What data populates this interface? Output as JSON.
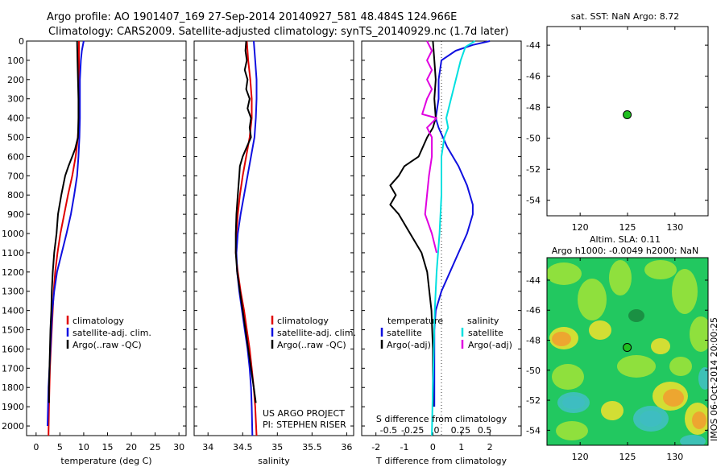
{
  "header": {
    "line1": "Argo profile: AO 1901407_169 27-Sep-2014 20140927_581 48.484S 124.966E",
    "line2": "Climatology: CARS2009. Satellite-adjusted climatology: synTS_20140929.nc (1.7d later)"
  },
  "colors": {
    "climatology": "#e00000",
    "satellite": "#1010e0",
    "argo": "#000000",
    "sal_satellite": "#00e0e0",
    "sal_argo": "#e000e0",
    "marker": "#20c020"
  },
  "credits": {
    "line1": "US ARGO PROJECT",
    "line2": "PI: STEPHEN RISER"
  },
  "chart_data": [
    {
      "id": "temperature",
      "type": "line",
      "xlabel": "temperature (deg C)",
      "xlim": [
        -2,
        31.5
      ],
      "ylim": [
        0,
        2050
      ],
      "yreversed": true,
      "xticks": [
        0,
        5,
        10,
        15,
        20,
        25,
        30
      ],
      "xticklabels": [
        "0",
        "5",
        "10",
        "15",
        "20",
        "25",
        "30"
      ],
      "yticks": [
        0,
        100,
        200,
        300,
        400,
        500,
        600,
        700,
        800,
        900,
        1000,
        1100,
        1200,
        1300,
        1400,
        1500,
        1600,
        1700,
        1800,
        1900,
        2000
      ],
      "legend": [
        "climatology",
        "satellite-adj. clim.",
        "Argo(..raw -QC)"
      ],
      "series": [
        {
          "name": "climatology",
          "color": "#e00000",
          "points": [
            [
              9.0,
              0
            ],
            [
              9.0,
              100
            ],
            [
              9.0,
              300
            ],
            [
              8.9,
              450
            ],
            [
              8.7,
              520
            ],
            [
              8.3,
              600
            ],
            [
              7.6,
              700
            ],
            [
              6.7,
              800
            ],
            [
              5.9,
              900
            ],
            [
              5.1,
              1000
            ],
            [
              4.5,
              1100
            ],
            [
              4.0,
              1200
            ],
            [
              3.7,
              1300
            ],
            [
              3.5,
              1400
            ],
            [
              3.3,
              1500
            ],
            [
              3.1,
              1600
            ],
            [
              2.9,
              1700
            ],
            [
              2.8,
              1800
            ],
            [
              2.7,
              1900
            ],
            [
              2.6,
              2050
            ]
          ]
        },
        {
          "name": "satellite-adj. clim.",
          "color": "#1010e0",
          "points": [
            [
              10.0,
              0
            ],
            [
              9.6,
              50
            ],
            [
              9.4,
              100
            ],
            [
              9.2,
              200
            ],
            [
              9.2,
              300
            ],
            [
              9.2,
              400
            ],
            [
              9.1,
              500
            ],
            [
              8.9,
              600
            ],
            [
              8.6,
              700
            ],
            [
              8.0,
              800
            ],
            [
              7.3,
              900
            ],
            [
              6.4,
              1000
            ],
            [
              5.4,
              1100
            ],
            [
              4.4,
              1200
            ],
            [
              3.8,
              1300
            ],
            [
              3.4,
              1400
            ],
            [
              3.2,
              1500
            ],
            [
              3.0,
              1600
            ],
            [
              2.8,
              1700
            ],
            [
              2.6,
              1800
            ],
            [
              2.5,
              1900
            ],
            [
              2.4,
              2000
            ]
          ]
        },
        {
          "name": "Argo(..raw -QC)",
          "color": "#000000",
          "points": [
            [
              8.6,
              0
            ],
            [
              8.7,
              100
            ],
            [
              8.8,
              200
            ],
            [
              8.9,
              300
            ],
            [
              8.9,
              400
            ],
            [
              8.8,
              500
            ],
            [
              8.2,
              560
            ],
            [
              7.6,
              600
            ],
            [
              6.8,
              650
            ],
            [
              6.1,
              700
            ],
            [
              5.3,
              800
            ],
            [
              4.6,
              900
            ],
            [
              4.3,
              1000
            ],
            [
              3.8,
              1100
            ],
            [
              3.5,
              1200
            ],
            [
              3.3,
              1300
            ],
            [
              3.2,
              1400
            ],
            [
              3.0,
              1500
            ],
            [
              2.9,
              1600
            ],
            [
              2.8,
              1700
            ],
            [
              2.7,
              1800
            ],
            [
              2.7,
              1880
            ]
          ]
        }
      ]
    },
    {
      "id": "salinity",
      "type": "line",
      "xlabel": "salinity",
      "xlim": [
        33.8,
        36.1
      ],
      "ylim": [
        0,
        2050
      ],
      "yreversed": true,
      "xticks": [
        34,
        34.5,
        35,
        35.5,
        36
      ],
      "xticklabels": [
        "34",
        "34.5",
        "35",
        "35.5",
        "36"
      ],
      "legend": [
        "climatology",
        "satellite-adj. clim.",
        "Argo(..raw -QC)"
      ],
      "series": [
        {
          "name": "climatology",
          "color": "#e00000",
          "points": [
            [
              34.56,
              0
            ],
            [
              34.58,
              100
            ],
            [
              34.61,
              200
            ],
            [
              34.63,
              300
            ],
            [
              34.63,
              400
            ],
            [
              34.6,
              500
            ],
            [
              34.55,
              600
            ],
            [
              34.5,
              700
            ],
            [
              34.46,
              800
            ],
            [
              34.43,
              900
            ],
            [
              34.41,
              1000
            ],
            [
              34.4,
              1100
            ],
            [
              34.43,
              1200
            ],
            [
              34.47,
              1300
            ],
            [
              34.52,
              1400
            ],
            [
              34.56,
              1500
            ],
            [
              34.6,
              1600
            ],
            [
              34.63,
              1700
            ],
            [
              34.66,
              1800
            ],
            [
              34.68,
              1900
            ],
            [
              34.7,
              2050
            ]
          ]
        },
        {
          "name": "satellite-adj. clim.",
          "color": "#1010e0",
          "points": [
            [
              34.66,
              0
            ],
            [
              34.68,
              100
            ],
            [
              34.7,
              200
            ],
            [
              34.7,
              300
            ],
            [
              34.69,
              400
            ],
            [
              34.67,
              500
            ],
            [
              34.62,
              600
            ],
            [
              34.57,
              700
            ],
            [
              34.52,
              800
            ],
            [
              34.47,
              900
            ],
            [
              34.43,
              1000
            ],
            [
              34.41,
              1100
            ],
            [
              34.42,
              1200
            ],
            [
              34.45,
              1300
            ],
            [
              34.49,
              1400
            ],
            [
              34.53,
              1500
            ],
            [
              34.57,
              1600
            ],
            [
              34.6,
              1700
            ],
            [
              34.62,
              1800
            ],
            [
              34.63,
              1900
            ],
            [
              34.64,
              2050
            ]
          ]
        },
        {
          "name": "Argo(..raw -QC)",
          "color": "#000000",
          "points": [
            [
              34.55,
              0
            ],
            [
              34.54,
              50
            ],
            [
              34.56,
              100
            ],
            [
              34.53,
              150
            ],
            [
              34.57,
              200
            ],
            [
              34.55,
              250
            ],
            [
              34.6,
              300
            ],
            [
              34.57,
              350
            ],
            [
              34.62,
              400
            ],
            [
              34.6,
              450
            ],
            [
              34.62,
              500
            ],
            [
              34.56,
              550
            ],
            [
              34.5,
              600
            ],
            [
              34.46,
              650
            ],
            [
              34.45,
              700
            ],
            [
              34.43,
              800
            ],
            [
              34.41,
              900
            ],
            [
              34.4,
              1000
            ],
            [
              34.4,
              1100
            ],
            [
              34.42,
              1200
            ],
            [
              34.46,
              1300
            ],
            [
              34.5,
              1400
            ],
            [
              34.54,
              1500
            ],
            [
              34.58,
              1600
            ],
            [
              34.62,
              1700
            ],
            [
              34.66,
              1800
            ],
            [
              34.69,
              1880
            ]
          ]
        }
      ]
    },
    {
      "id": "difference",
      "type": "line",
      "xlabel": "T difference from climatology",
      "xlabel_top": "S difference from climatology",
      "xlim": [
        -2.5,
        3.1
      ],
      "ylim": [
        0,
        2050
      ],
      "yreversed": true,
      "xticks": [
        -2,
        -1,
        0,
        1,
        2
      ],
      "xticklabels": [
        "-2",
        "-1",
        "0",
        "1",
        "2"
      ],
      "xticks_top": [
        -0.5,
        -0.25,
        0,
        0.25,
        0.5
      ],
      "xticklabels_top": [
        "-0.5",
        "-0.25",
        "0",
        "0.25",
        "0.5"
      ],
      "legend_headers": [
        "temperature",
        "salinity"
      ],
      "legend": [
        [
          "satellite",
          "Argo(-adj)"
        ],
        [
          "satellite",
          "Argo(-adj)"
        ]
      ],
      "series": [
        {
          "name": "satellite",
          "group": "temperature",
          "color": "#1010e0",
          "points": [
            [
              2.0,
              0
            ],
            [
              1.4,
              20
            ],
            [
              0.8,
              50
            ],
            [
              0.3,
              100
            ],
            [
              0.2,
              200
            ],
            [
              0.2,
              300
            ],
            [
              0.1,
              400
            ],
            [
              0.2,
              450
            ],
            [
              0.5,
              550
            ],
            [
              0.9,
              650
            ],
            [
              1.2,
              750
            ],
            [
              1.4,
              850
            ],
            [
              1.4,
              900
            ],
            [
              1.2,
              1000
            ],
            [
              0.9,
              1100
            ],
            [
              0.6,
              1200
            ],
            [
              0.3,
              1300
            ],
            [
              0.1,
              1400
            ],
            [
              0.05,
              1500
            ],
            [
              0.05,
              1600
            ],
            [
              0.05,
              1800
            ],
            [
              0.05,
              1900
            ]
          ]
        },
        {
          "name": "Argo(-adj)",
          "group": "temperature",
          "color": "#000000",
          "points": [
            [
              0.0,
              0
            ],
            [
              0.05,
              100
            ],
            [
              0.1,
              200
            ],
            [
              0.05,
              300
            ],
            [
              0.1,
              400
            ],
            [
              0.0,
              450
            ],
            [
              -0.2,
              500
            ],
            [
              -0.5,
              600
            ],
            [
              -1.0,
              650
            ],
            [
              -1.2,
              700
            ],
            [
              -1.5,
              750
            ],
            [
              -1.3,
              800
            ],
            [
              -1.5,
              850
            ],
            [
              -1.2,
              900
            ],
            [
              -0.8,
              1000
            ],
            [
              -0.4,
              1100
            ],
            [
              -0.2,
              1200
            ],
            [
              -0.05,
              1400
            ],
            [
              0.0,
              1600
            ],
            [
              0.0,
              1800
            ],
            [
              0.0,
              1900
            ]
          ]
        },
        {
          "name": "satellite",
          "group": "salinity",
          "color": "#00e0e0",
          "points": [
            [
              0.4,
              0
            ],
            [
              0.3,
              30
            ],
            [
              0.25,
              100
            ],
            [
              0.2,
              200
            ],
            [
              0.15,
              300
            ],
            [
              0.1,
              400
            ],
            [
              0.12,
              450
            ],
            [
              0.08,
              500
            ],
            [
              0.05,
              600
            ],
            [
              0.05,
              800
            ],
            [
              0.03,
              1000
            ],
            [
              0.0,
              1200
            ],
            [
              -0.02,
              1400
            ],
            [
              -0.03,
              1600
            ],
            [
              -0.04,
              1800
            ],
            [
              -0.05,
              2050
            ]
          ]
        },
        {
          "name": "Argo(-adj)",
          "group": "salinity",
          "color": "#e000e0",
          "points": [
            [
              -0.1,
              0
            ],
            [
              -0.05,
              50
            ],
            [
              -0.1,
              100
            ],
            [
              -0.05,
              150
            ],
            [
              -0.1,
              200
            ],
            [
              -0.05,
              250
            ],
            [
              -0.1,
              300
            ],
            [
              -0.15,
              380
            ],
            [
              0.0,
              400
            ],
            [
              -0.1,
              450
            ],
            [
              -0.05,
              500
            ],
            [
              -0.05,
              600
            ],
            [
              -0.08,
              700
            ],
            [
              -0.1,
              800
            ],
            [
              -0.12,
              900
            ],
            [
              -0.05,
              1000
            ],
            [
              0.0,
              1100
            ]
          ]
        }
      ]
    },
    {
      "id": "sst_map",
      "type": "scatter",
      "title": "sat. SST: NaN Argo: 8.72",
      "xlim": [
        116.5,
        133.5
      ],
      "ylim": [
        -55,
        -42.8
      ],
      "xticks": [
        120,
        125,
        130
      ],
      "xticklabels": [
        "120",
        "125",
        "130"
      ],
      "yticks": [
        -44,
        -46,
        -48,
        -50,
        -52,
        -54
      ],
      "yticklabels": [
        "-44",
        "-46",
        "-48",
        "-50",
        "-52",
        "-54"
      ],
      "points": [
        [
          124.966,
          -48.484
        ]
      ]
    },
    {
      "id": "sla_map",
      "type": "heatmap",
      "title_line1": "Altim. SLA: 0.11",
      "title_line2": "Argo h1000: -0.0049 h2000: NaN",
      "side_label": "IMOS 06-Oct-2014 20:00:25",
      "xlim": [
        116.5,
        133.5
      ],
      "ylim": [
        -55,
        -42.5
      ],
      "xticks": [
        120,
        125,
        130
      ],
      "xticklabels": [
        "120",
        "125",
        "130"
      ],
      "yticks": [
        -44,
        -46,
        -48,
        -50,
        -52,
        -54
      ],
      "yticklabels": [
        "-44",
        "-46",
        "-48",
        "-50",
        "-52",
        "-54"
      ],
      "points": [
        [
          124.966,
          -48.484
        ]
      ]
    }
  ]
}
